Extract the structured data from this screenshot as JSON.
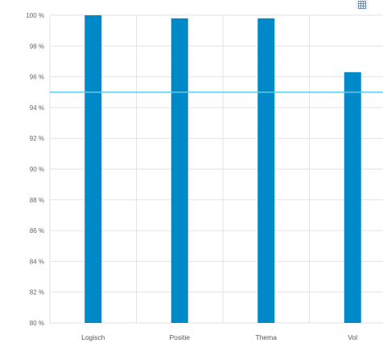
{
  "chart_data": {
    "type": "bar",
    "title": "",
    "xlabel": "",
    "ylabel": "",
    "categories": [
      "Logisch",
      "Positie",
      "Thema",
      "Vol"
    ],
    "values": [
      100.0,
      99.8,
      99.8,
      96.3
    ],
    "ylim": [
      80,
      100
    ],
    "yticks": [
      "80 %",
      "82 %",
      "84 %",
      "86 %",
      "88 %",
      "90 %",
      "92 %",
      "94 %",
      "96 %",
      "98 %",
      "100 %"
    ],
    "reference_line": {
      "value": 95.0
    },
    "grid": true,
    "legend": "none",
    "colors": {
      "bar": "#0089c9",
      "reference_line": "#5fc9ee",
      "grid": "#e3e3e3"
    }
  },
  "icons": {
    "menu": "table-icon"
  }
}
